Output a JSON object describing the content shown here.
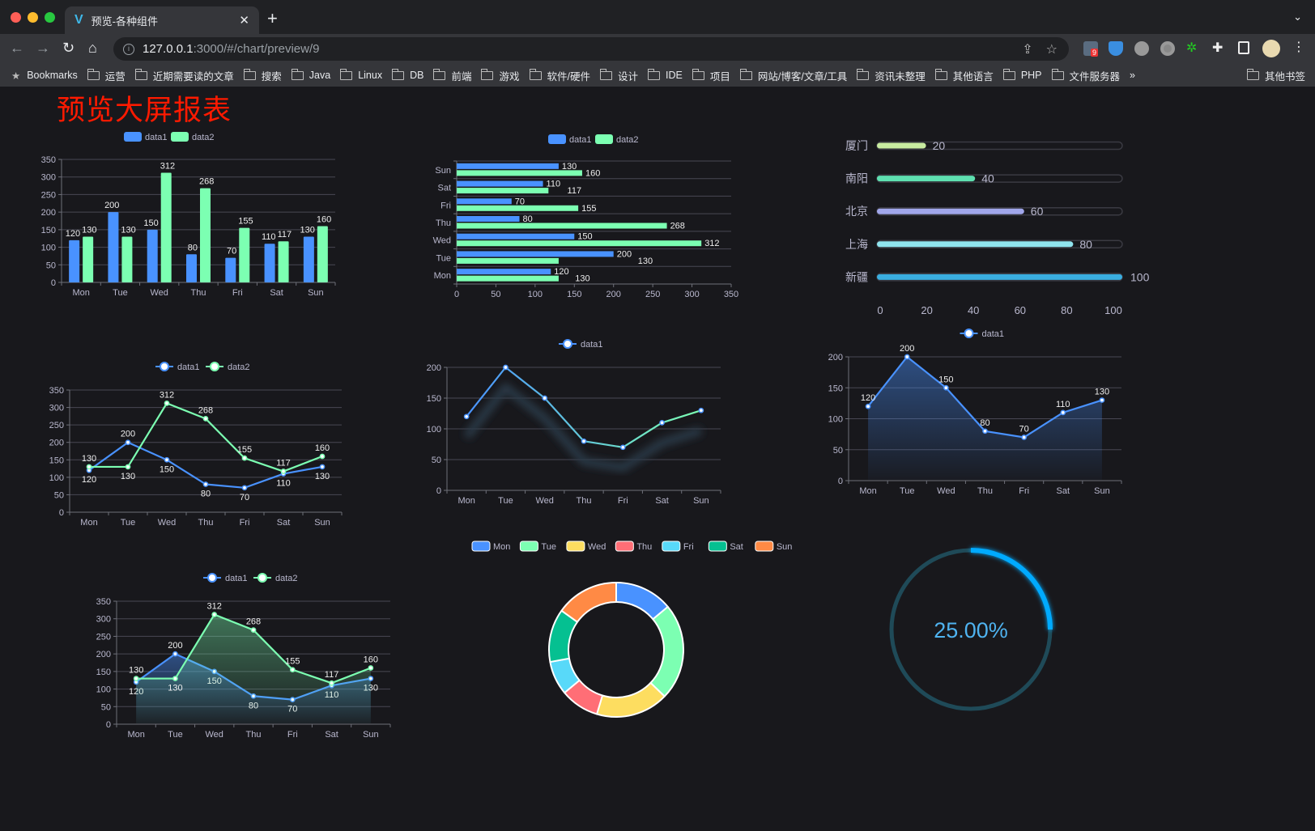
{
  "browser": {
    "tab_title": "预览-各种组件",
    "url_host": "127.0.0.1",
    "url_rest": ":3000/#/chart/preview/9",
    "extension_badge": "9",
    "bookmarks": [
      "Bookmarks",
      "运营",
      "近期需要读的文章",
      "搜索",
      "Java",
      "Linux",
      "DB",
      "前端",
      "游戏",
      "软件/硬件",
      "设计",
      "IDE",
      "项目",
      "网站/博客/文章/工具",
      "资讯未整理",
      "其他语言",
      "PHP",
      "文件服务器"
    ],
    "more": "»",
    "other_bookmarks": "其他书签"
  },
  "page": {
    "title": "预览大屏报表"
  },
  "colors": {
    "blue": "#4992ff",
    "green": "#7cffb2",
    "yellow": "#fddd60",
    "red": "#ff6e76",
    "cyan": "#58d9f9",
    "teal": "#05c091",
    "orange": "#ff8a45",
    "title": "#ff1a00",
    "gauge": "#00aaff"
  },
  "chart_data": [
    {
      "id": "bar",
      "type": "bar",
      "categories": [
        "Mon",
        "Tue",
        "Wed",
        "Thu",
        "Fri",
        "Sat",
        "Sun"
      ],
      "ylim": [
        0,
        350
      ],
      "yticks": [
        0,
        50,
        100,
        150,
        200,
        250,
        300,
        350
      ],
      "legend": "top",
      "series": [
        {
          "name": "data1",
          "values": [
            120,
            200,
            150,
            80,
            70,
            110,
            130
          ]
        },
        {
          "name": "data2",
          "values": [
            130,
            130,
            312,
            268,
            155,
            117,
            160
          ]
        }
      ]
    },
    {
      "id": "hbar",
      "type": "bar",
      "orientation": "horizontal",
      "categories": [
        "Mon",
        "Tue",
        "Wed",
        "Thu",
        "Fri",
        "Sat",
        "Sun"
      ],
      "xlim": [
        0,
        350
      ],
      "xticks": [
        0,
        50,
        100,
        150,
        200,
        250,
        300,
        350
      ],
      "legend": "top",
      "series": [
        {
          "name": "data1",
          "values": [
            120,
            200,
            150,
            80,
            70,
            110,
            130
          ]
        },
        {
          "name": "data2",
          "values": [
            130,
            130,
            312,
            268,
            155,
            117,
            160
          ]
        }
      ]
    },
    {
      "id": "progress",
      "type": "bar",
      "orientation": "horizontal",
      "categories": [
        "厦门",
        "南阳",
        "北京",
        "上海",
        "新疆"
      ],
      "values": [
        20,
        40,
        60,
        80,
        100
      ],
      "xlim": [
        0,
        100
      ],
      "xticks": [
        0,
        20,
        40,
        60,
        80,
        100
      ],
      "colors": [
        "#c8eba0",
        "#5ee0b0",
        "#a0a6ea",
        "#90e4ee",
        "#3aaee0"
      ]
    },
    {
      "id": "line2",
      "type": "line",
      "categories": [
        "Mon",
        "Tue",
        "Wed",
        "Thu",
        "Fri",
        "Sat",
        "Sun"
      ],
      "ylim": [
        0,
        350
      ],
      "yticks": [
        0,
        50,
        100,
        150,
        200,
        250,
        300,
        350
      ],
      "legend": "top",
      "series": [
        {
          "name": "data1",
          "values": [
            120,
            200,
            150,
            80,
            70,
            110,
            130
          ]
        },
        {
          "name": "data2",
          "values": [
            130,
            130,
            312,
            268,
            155,
            117,
            160
          ]
        }
      ]
    },
    {
      "id": "line1",
      "type": "line",
      "categories": [
        "Mon",
        "Tue",
        "Wed",
        "Thu",
        "Fri",
        "Sat",
        "Sun"
      ],
      "ylim": [
        0,
        200
      ],
      "yticks": [
        0,
        50,
        100,
        150,
        200
      ],
      "legend": "top",
      "gradient_stroke": true,
      "series": [
        {
          "name": "data1",
          "values": [
            120,
            200,
            150,
            80,
            70,
            110,
            130
          ]
        }
      ]
    },
    {
      "id": "area1",
      "type": "area",
      "categories": [
        "Mon",
        "Tue",
        "Wed",
        "Thu",
        "Fri",
        "Sat",
        "Sun"
      ],
      "ylim": [
        0,
        200
      ],
      "yticks": [
        0,
        50,
        100,
        150,
        200
      ],
      "legend": "top",
      "series": [
        {
          "name": "data1",
          "values": [
            120,
            200,
            150,
            80,
            70,
            110,
            130
          ]
        }
      ]
    },
    {
      "id": "area2",
      "type": "area",
      "categories": [
        "Mon",
        "Tue",
        "Wed",
        "Thu",
        "Fri",
        "Sat",
        "Sun"
      ],
      "ylim": [
        0,
        350
      ],
      "yticks": [
        0,
        50,
        100,
        150,
        200,
        250,
        300,
        350
      ],
      "legend": "top",
      "series": [
        {
          "name": "data1",
          "values": [
            120,
            200,
            150,
            80,
            70,
            110,
            130
          ]
        },
        {
          "name": "data2",
          "values": [
            130,
            130,
            312,
            268,
            155,
            117,
            160
          ]
        }
      ]
    },
    {
      "id": "donut",
      "type": "pie",
      "donut": true,
      "legend": "top",
      "categories": [
        "Mon",
        "Tue",
        "Wed",
        "Thu",
        "Fri",
        "Sat",
        "Sun"
      ],
      "values": [
        120,
        200,
        150,
        80,
        70,
        110,
        130
      ]
    },
    {
      "id": "gauge",
      "type": "gauge",
      "value": 25,
      "label": "25.00%"
    }
  ]
}
